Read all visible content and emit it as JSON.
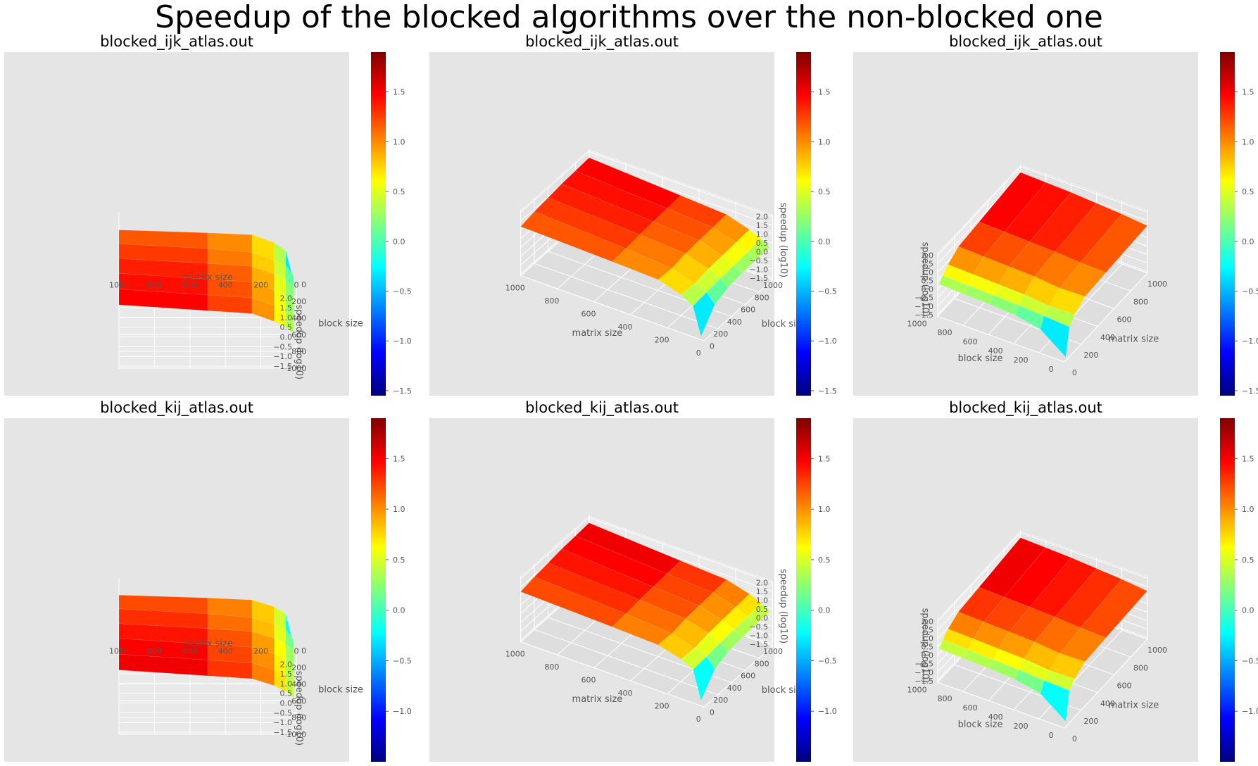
{
  "suptitle": "Speedup of the blocked algorithms over the non-blocked one",
  "colormap": {
    "name": "jet",
    "stops": [
      "#00007f",
      "#0000ff",
      "#007fff",
      "#00ffff",
      "#7fff7f",
      "#ffff00",
      "#ff7f00",
      "#ff0000",
      "#7f0000"
    ]
  },
  "chart_data": [
    {
      "type": "surface3d",
      "title": "blocked_ijk_atlas.out",
      "xlabel": "matrix size",
      "ylabel": "block size",
      "zlabel": "speedup (log10)",
      "x_ticks": [
        "1000",
        "800",
        "600",
        "400",
        "200",
        "0"
      ],
      "y_ticks": [
        "0",
        "200",
        "400",
        "600",
        "800",
        "1000"
      ],
      "z_ticks": [
        "2.0",
        "1.5",
        "1.0",
        "0.5",
        "0.0",
        "−0.5",
        "−1.0",
        "−1.5"
      ],
      "colorbar_ticks": [
        "1.5",
        "1.0",
        "0.5",
        "0.0",
        "−0.5",
        "−1.0",
        "−1.5"
      ],
      "colorbar_range": [
        -1.55,
        1.9
      ],
      "view": "front",
      "surface": {
        "matrix_size": [
          1000,
          500,
          250,
          125,
          60,
          16
        ],
        "block_size": [
          0,
          200,
          400,
          600,
          800,
          1000
        ],
        "speedup_log10": [
          [
            1.2,
            1.05,
            0.95,
            0.55,
            0.15,
            -1.4
          ],
          [
            1.35,
            1.1,
            0.9,
            0.5,
            0.25,
            -0.3
          ],
          [
            1.45,
            1.2,
            1.05,
            0.65,
            0.35,
            0.0
          ],
          [
            1.55,
            1.25,
            1.1,
            0.7,
            0.4,
            0.1
          ],
          [
            1.6,
            1.3,
            1.15,
            0.75,
            0.45,
            0.15
          ],
          [
            1.65,
            1.35,
            1.2,
            0.8,
            0.5,
            0.2
          ]
        ]
      }
    },
    {
      "type": "surface3d",
      "title": "blocked_ijk_atlas.out",
      "xlabel": "matrix size",
      "ylabel": "block size",
      "zlabel": "speedup (log10)",
      "x_ticks": [
        "1000",
        "800",
        "600",
        "400",
        "200",
        "0"
      ],
      "y_ticks": [
        "1000",
        "800",
        "600",
        "400",
        "200",
        "0"
      ],
      "z_ticks": [
        "2.0",
        "1.5",
        "1.0",
        "0.5",
        "0.0",
        "−0.5",
        "−1.0",
        "−1.5"
      ],
      "colorbar_ticks": [
        "1.5",
        "1.0",
        "0.5",
        "0.0",
        "−0.5",
        "−1.0",
        "−1.5"
      ],
      "colorbar_range": [
        -1.55,
        1.9
      ],
      "view": "side",
      "surface": {
        "matrix_size": [
          1000,
          500,
          250,
          125,
          60,
          16
        ],
        "block_size": [
          0,
          200,
          400,
          600,
          800,
          1000
        ],
        "speedup_log10": [
          [
            1.2,
            1.05,
            0.95,
            0.55,
            0.15,
            -1.4
          ],
          [
            1.35,
            1.1,
            0.9,
            0.5,
            0.25,
            -0.3
          ],
          [
            1.45,
            1.2,
            1.05,
            0.65,
            0.35,
            0.0
          ],
          [
            1.55,
            1.25,
            1.1,
            0.7,
            0.4,
            0.1
          ],
          [
            1.6,
            1.3,
            1.15,
            0.75,
            0.45,
            0.15
          ],
          [
            1.65,
            1.35,
            1.2,
            0.8,
            0.5,
            0.2
          ]
        ]
      }
    },
    {
      "type": "surface3d",
      "title": "blocked_ijk_atlas.out",
      "xlabel": "matrix size",
      "ylabel": "block size",
      "zlabel": "speedup (log10)",
      "x_ticks": [
        "1000",
        "800",
        "600",
        "400",
        "200",
        "0"
      ],
      "y_ticks": [
        "1000",
        "800",
        "600",
        "400",
        "200",
        "0"
      ],
      "z_ticks": [
        "2.0",
        "1.5",
        "1.0",
        "0.5",
        "0.0",
        "−0.5",
        "−1.0",
        "−1.5"
      ],
      "colorbar_ticks": [
        "1.5",
        "1.0",
        "0.5",
        "0.0",
        "−0.5",
        "−1.0",
        "−1.5"
      ],
      "colorbar_range": [
        -1.55,
        1.9
      ],
      "view": "corner",
      "surface": {
        "matrix_size": [
          1000,
          500,
          250,
          125,
          60,
          16
        ],
        "block_size": [
          0,
          200,
          400,
          600,
          800,
          1000
        ],
        "speedup_log10": [
          [
            1.2,
            1.05,
            0.95,
            0.55,
            0.15,
            -1.4
          ],
          [
            1.35,
            1.1,
            0.9,
            0.5,
            0.25,
            -0.3
          ],
          [
            1.45,
            1.2,
            1.05,
            0.65,
            0.35,
            0.0
          ],
          [
            1.55,
            1.25,
            1.1,
            0.7,
            0.4,
            0.1
          ],
          [
            1.6,
            1.3,
            1.15,
            0.75,
            0.45,
            0.15
          ],
          [
            1.65,
            1.35,
            1.2,
            0.8,
            0.5,
            0.2
          ]
        ]
      }
    },
    {
      "type": "surface3d",
      "title": "blocked_kij_atlas.out",
      "xlabel": "matrix size",
      "ylabel": "block size",
      "zlabel": "speedup (log10)",
      "x_ticks": [
        "1000",
        "800",
        "600",
        "400",
        "200",
        "0"
      ],
      "y_ticks": [
        "0",
        "200",
        "400",
        "600",
        "800",
        "1000"
      ],
      "z_ticks": [
        "2.0",
        "1.5",
        "1.0",
        "0.5",
        "0.0",
        "−0.5",
        "−1.0",
        "−1.5"
      ],
      "colorbar_ticks": [
        "1.5",
        "1.0",
        "0.5",
        "0.0",
        "−0.5",
        "−1.0"
      ],
      "colorbar_range": [
        -1.5,
        1.9
      ],
      "view": "front",
      "surface": {
        "matrix_size": [
          1000,
          500,
          250,
          125,
          60,
          16
        ],
        "block_size": [
          0,
          200,
          400,
          600,
          800,
          1000
        ],
        "speedup_log10": [
          [
            1.25,
            1.1,
            1.0,
            0.65,
            0.3,
            -1.3
          ],
          [
            1.4,
            1.15,
            0.95,
            0.6,
            0.35,
            -0.2
          ],
          [
            1.5,
            1.25,
            1.1,
            0.75,
            0.45,
            0.1
          ],
          [
            1.6,
            1.3,
            1.15,
            0.8,
            0.5,
            0.2
          ],
          [
            1.65,
            1.35,
            1.2,
            0.85,
            0.55,
            0.25
          ],
          [
            1.7,
            1.4,
            1.25,
            0.9,
            0.6,
            0.3
          ]
        ]
      }
    },
    {
      "type": "surface3d",
      "title": "blocked_kij_atlas.out",
      "xlabel": "matrix size",
      "ylabel": "block size",
      "zlabel": "speedup (log10)",
      "x_ticks": [
        "1000",
        "800",
        "600",
        "400",
        "200",
        "0"
      ],
      "y_ticks": [
        "1000",
        "800",
        "600",
        "400",
        "200",
        "0"
      ],
      "z_ticks": [
        "2.0",
        "1.5",
        "1.0",
        "0.5",
        "0.0",
        "−0.5",
        "−1.0",
        "−1.5"
      ],
      "colorbar_ticks": [
        "1.5",
        "1.0",
        "0.5",
        "0.0",
        "−0.5",
        "−1.0"
      ],
      "colorbar_range": [
        -1.5,
        1.9
      ],
      "view": "side",
      "surface": {
        "matrix_size": [
          1000,
          500,
          250,
          125,
          60,
          16
        ],
        "block_size": [
          0,
          200,
          400,
          600,
          800,
          1000
        ],
        "speedup_log10": [
          [
            1.25,
            1.1,
            1.0,
            0.65,
            0.3,
            -1.3
          ],
          [
            1.4,
            1.15,
            0.95,
            0.6,
            0.35,
            -0.2
          ],
          [
            1.5,
            1.25,
            1.1,
            0.75,
            0.45,
            0.1
          ],
          [
            1.6,
            1.3,
            1.15,
            0.8,
            0.5,
            0.2
          ],
          [
            1.65,
            1.35,
            1.2,
            0.85,
            0.55,
            0.25
          ],
          [
            1.7,
            1.4,
            1.25,
            0.9,
            0.6,
            0.3
          ]
        ]
      }
    },
    {
      "type": "surface3d",
      "title": "blocked_kij_atlas.out",
      "xlabel": "matrix size",
      "ylabel": "block size",
      "zlabel": "speedup (log10)",
      "x_ticks": [
        "1000",
        "800",
        "600",
        "400",
        "200",
        "0"
      ],
      "y_ticks": [
        "1000",
        "800",
        "600",
        "400",
        "200",
        "0"
      ],
      "z_ticks": [
        "2.0",
        "1.5",
        "1.0",
        "0.5",
        "0.0",
        "−0.5",
        "−1.0",
        "−1.5"
      ],
      "colorbar_ticks": [
        "1.5",
        "1.0",
        "0.5",
        "0.0",
        "−0.5",
        "−1.0"
      ],
      "colorbar_range": [
        -1.5,
        1.9
      ],
      "view": "corner",
      "surface": {
        "matrix_size": [
          1000,
          500,
          250,
          125,
          60,
          16
        ],
        "block_size": [
          0,
          200,
          400,
          600,
          800,
          1000
        ],
        "speedup_log10": [
          [
            1.25,
            1.1,
            1.0,
            0.65,
            0.3,
            -1.3
          ],
          [
            1.4,
            1.15,
            0.95,
            0.6,
            0.35,
            -0.2
          ],
          [
            1.5,
            1.25,
            1.1,
            0.75,
            0.45,
            0.1
          ],
          [
            1.6,
            1.3,
            1.15,
            0.8,
            0.5,
            0.2
          ],
          [
            1.65,
            1.35,
            1.2,
            0.85,
            0.55,
            0.25
          ],
          [
            1.7,
            1.4,
            1.25,
            0.9,
            0.6,
            0.3
          ]
        ]
      }
    }
  ]
}
